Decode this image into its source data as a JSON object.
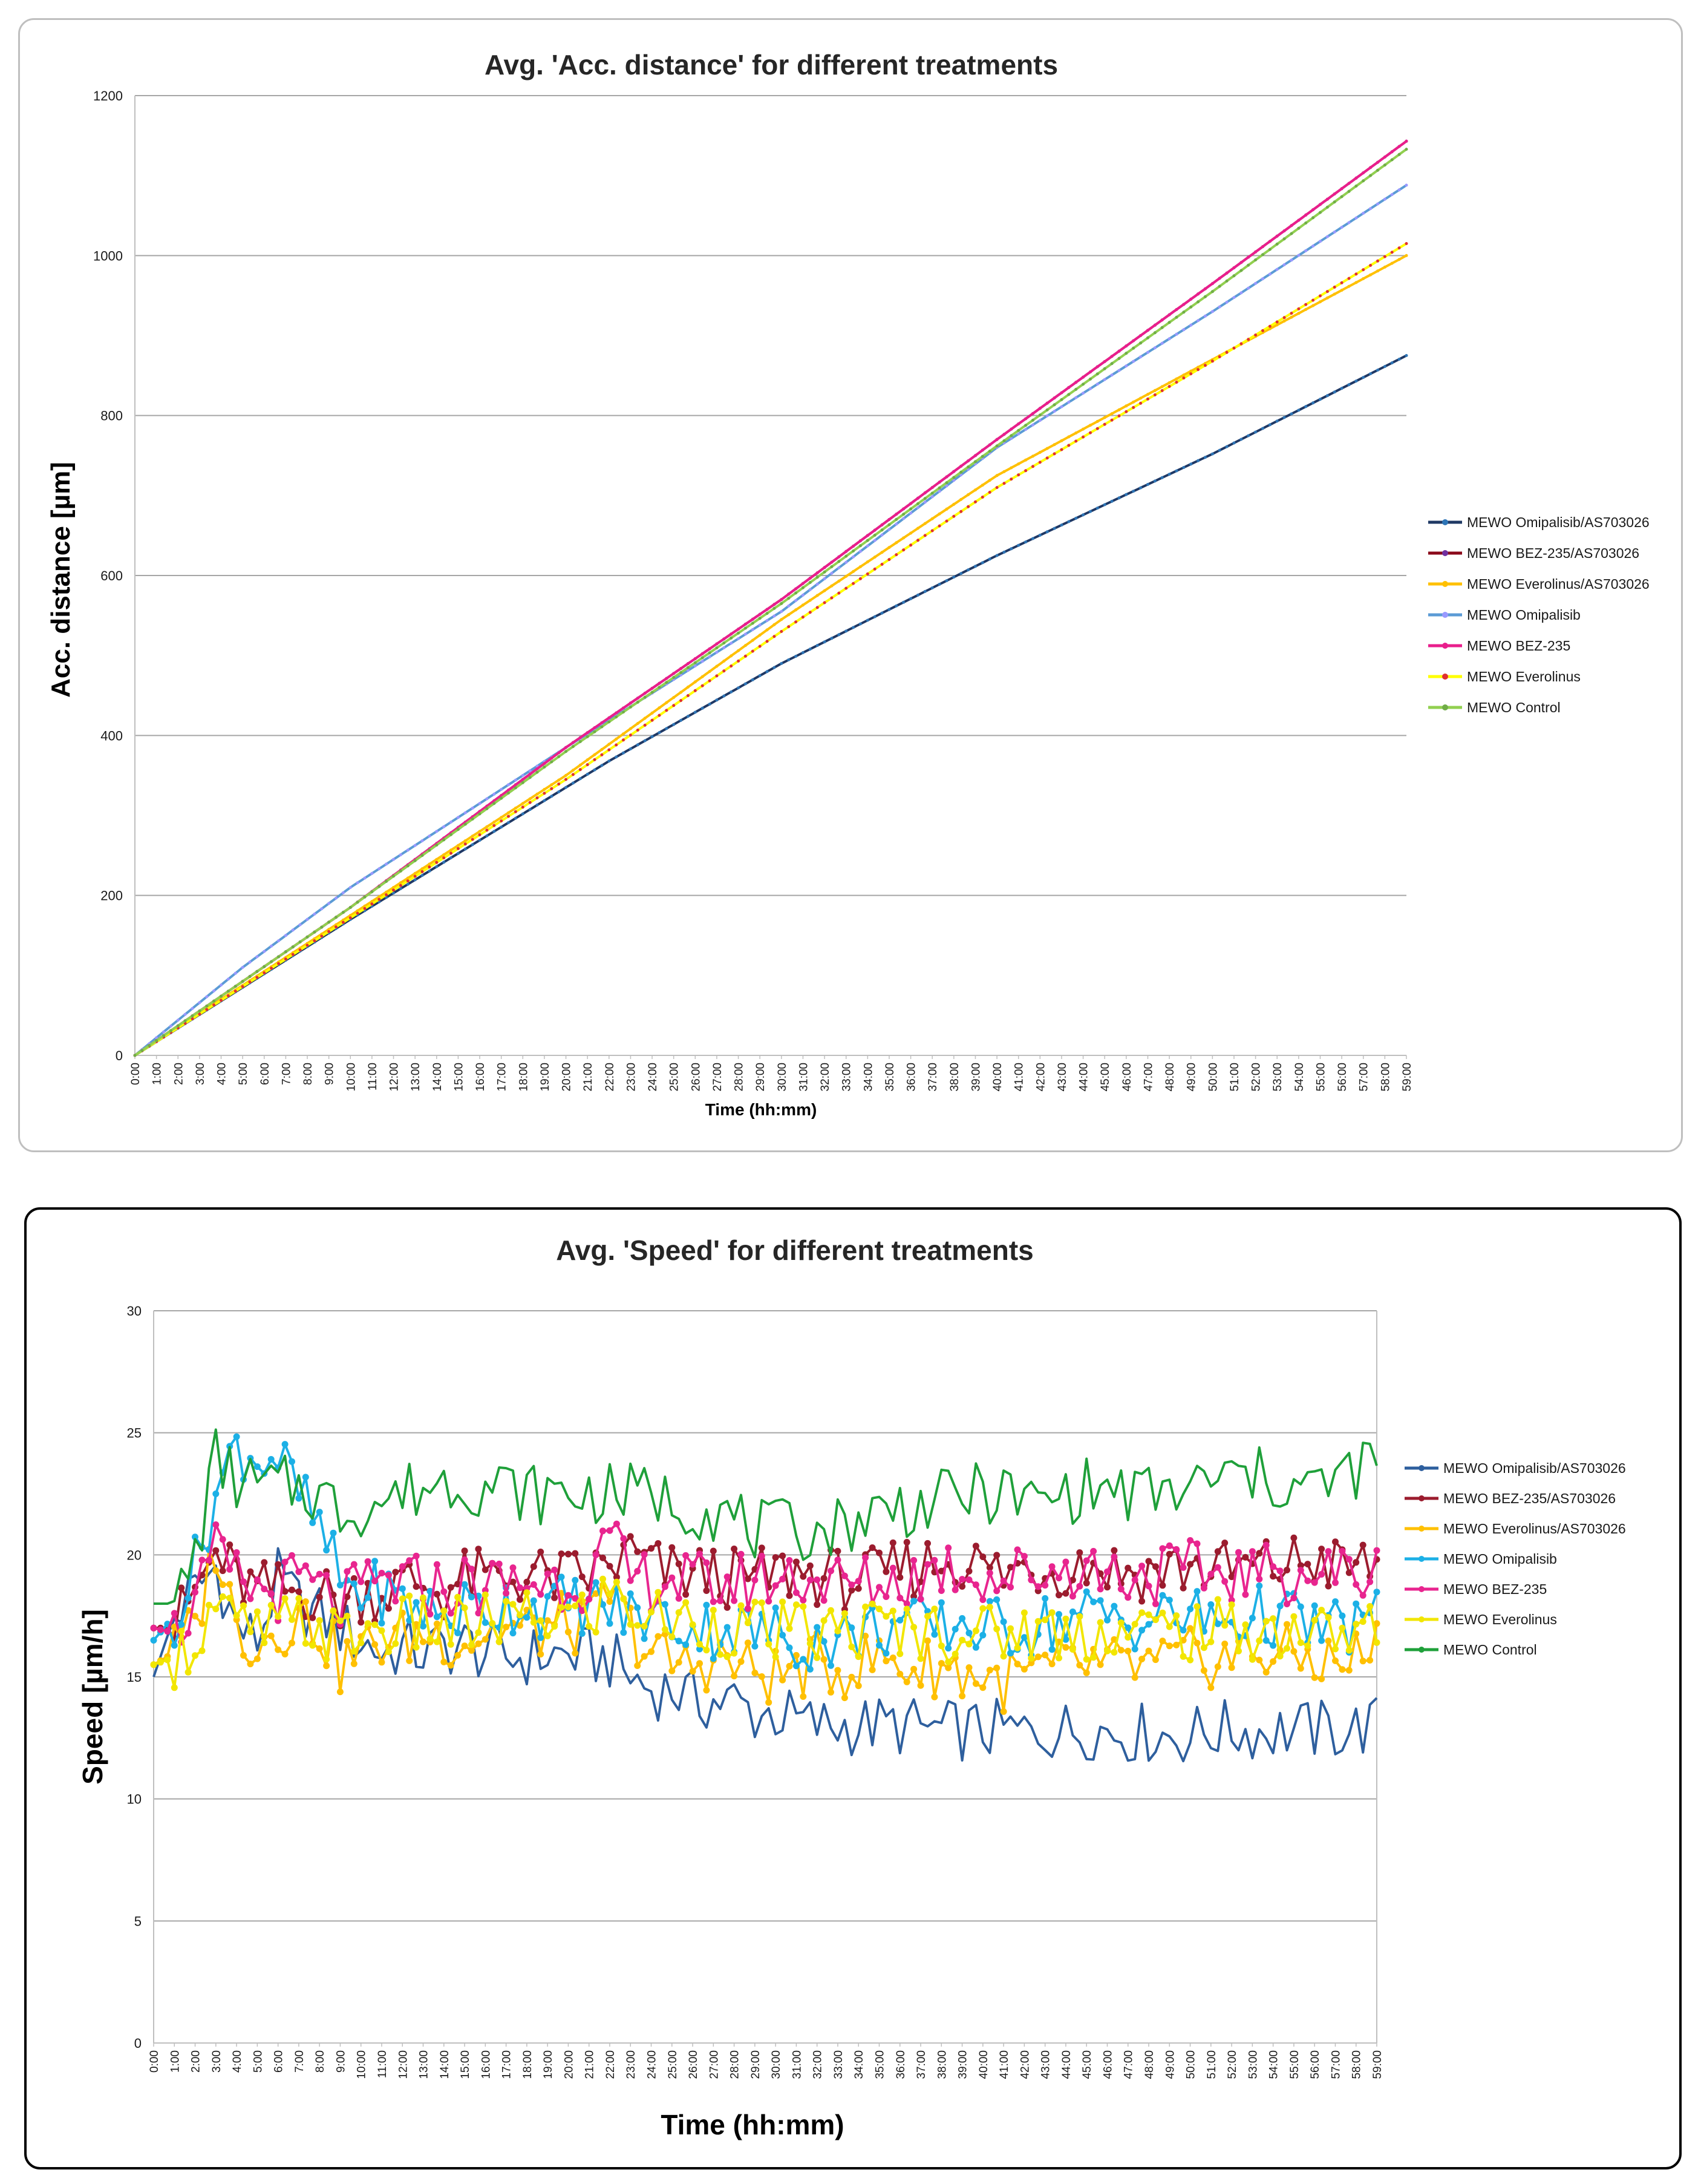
{
  "chart_data": [
    {
      "type": "line",
      "title": "Avg. 'Acc. distance' for different treatments",
      "xlabel": "Time (hh:mm)",
      "ylabel": "Acc. distance [µm]",
      "ylim": [
        0,
        1200
      ],
      "yticks": [
        "0",
        "200",
        "400",
        "600",
        "800",
        "1000",
        "1200"
      ],
      "grid": "horizontal",
      "legend": "right",
      "x": [
        "0:00",
        "1:00",
        "2:00",
        "3:00",
        "4:00",
        "5:00",
        "6:00",
        "7:00",
        "8:00",
        "9:00",
        "10:00",
        "11:00",
        "12:00",
        "13:00",
        "14:00",
        "15:00",
        "16:00",
        "17:00",
        "18:00",
        "19:00",
        "20:00",
        "21:00",
        "22:00",
        "23:00",
        "24:00",
        "25:00",
        "26:00",
        "27:00",
        "28:00",
        "29:00",
        "30:00",
        "31:00",
        "32:00",
        "33:00",
        "34:00",
        "35:00",
        "36:00",
        "37:00",
        "38:00",
        "39:00",
        "40:00",
        "41:00",
        "42:00",
        "43:00",
        "44:00",
        "45:00",
        "46:00",
        "47:00",
        "48:00",
        "49:00",
        "50:00",
        "51:00",
        "52:00",
        "53:00",
        "54:00",
        "55:00",
        "56:00",
        "57:00",
        "58:00",
        "59:00"
      ],
      "series": [
        {
          "name": "MEWO Omipalisib/AS703026",
          "color": "#1f3864",
          "marker": "#2e75b6",
          "anchors": [
            [
              0,
              0
            ],
            [
              10,
              170
            ],
            [
              20,
              335
            ],
            [
              22,
              368
            ],
            [
              30,
              490
            ],
            [
              40,
              625
            ],
            [
              50,
              752
            ],
            [
              59,
              875
            ]
          ]
        },
        {
          "name": "MEWO BEZ-235/AS703026",
          "color": "#8b0a1a",
          "marker": "#7030a0",
          "anchors": [
            [
              0,
              0
            ],
            [
              10,
              185
            ],
            [
              20,
              385
            ],
            [
              30,
              570
            ],
            [
              40,
              770
            ],
            [
              50,
              965
            ],
            [
              59,
              1143
            ]
          ]
        },
        {
          "name": "MEWO Everolinus/AS703026",
          "color": "#ffc000",
          "marker": "#ffc000",
          "anchors": [
            [
              0,
              0
            ],
            [
              10,
              175
            ],
            [
              20,
              350
            ],
            [
              30,
              545
            ],
            [
              40,
              725
            ],
            [
              50,
              870
            ],
            [
              59,
              1000
            ]
          ]
        },
        {
          "name": "MEWO Omipalisib",
          "color": "#5b9bd5",
          "marker": "#9999ff",
          "anchors": [
            [
              0,
              0
            ],
            [
              5,
              110
            ],
            [
              10,
              210
            ],
            [
              20,
              385
            ],
            [
              30,
              555
            ],
            [
              40,
              760
            ],
            [
              50,
              930
            ],
            [
              59,
              1088
            ]
          ]
        },
        {
          "name": "MEWO BEZ-235",
          "color": "#e91e8c",
          "marker": "#e91e8c",
          "anchors": [
            [
              0,
              0
            ],
            [
              10,
              185
            ],
            [
              20,
              385
            ],
            [
              30,
              570
            ],
            [
              40,
              770
            ],
            [
              50,
              965
            ],
            [
              59,
              1143
            ]
          ]
        },
        {
          "name": "MEWO Everolinus",
          "color": "#ffff00",
          "marker": "#e03030",
          "anchors": [
            [
              0,
              0
            ],
            [
              10,
              172
            ],
            [
              20,
              345
            ],
            [
              30,
              530
            ],
            [
              40,
              710
            ],
            [
              50,
              868
            ],
            [
              59,
              1015
            ]
          ]
        },
        {
          "name": "MEWO Control",
          "color": "#92d050",
          "marker": "#70ad47",
          "anchors": [
            [
              0,
              0
            ],
            [
              10,
              185
            ],
            [
              20,
              380
            ],
            [
              30,
              565
            ],
            [
              40,
              762
            ],
            [
              50,
              955
            ],
            [
              59,
              1133
            ]
          ]
        }
      ]
    },
    {
      "type": "line",
      "title": "Avg. 'Speed' for different treatments",
      "xlabel": "Time (hh:mm)",
      "ylabel": "Speed [µm/h]",
      "ylim": [
        0,
        30
      ],
      "yticks": [
        "0",
        "5",
        "10",
        "15",
        "20",
        "25",
        "30"
      ],
      "grid": "horizontal",
      "legend": "right",
      "x": [
        "0:00",
        "1:00",
        "2:00",
        "3:00",
        "4:00",
        "5:00",
        "6:00",
        "7:00",
        "8:00",
        "9:00",
        "10:00",
        "11:00",
        "12:00",
        "13:00",
        "14:00",
        "15:00",
        "16:00",
        "17:00",
        "18:00",
        "19:00",
        "20:00",
        "21:00",
        "22:00",
        "23:00",
        "24:00",
        "25:00",
        "26:00",
        "27:00",
        "28:00",
        "29:00",
        "30:00",
        "31:00",
        "32:00",
        "33:00",
        "34:00",
        "35:00",
        "36:00",
        "37:00",
        "38:00",
        "39:00",
        "40:00",
        "41:00",
        "42:00",
        "43:00",
        "44:00",
        "45:00",
        "46:00",
        "47:00",
        "48:00",
        "49:00",
        "50:00",
        "51:00",
        "52:00",
        "53:00",
        "54:00",
        "55:00",
        "56:00",
        "57:00",
        "58:00",
        "59:00"
      ],
      "series": [
        {
          "name": "MEWO Omipalisib/AS703026",
          "color": "#2e5f9e",
          "dots": false,
          "values": [
            15.0,
            17.5,
            18.5,
            19.5,
            17.0,
            16.5,
            19.0,
            18.0,
            17.5,
            17.0,
            16.5,
            16.0,
            16.2,
            16.0,
            16.2,
            16.3,
            16.0,
            15.8,
            15.8,
            15.9,
            15.9,
            15.8,
            15.7,
            15.0,
            14.5,
            14.5,
            14.0,
            14.0,
            14.0,
            13.5,
            13.5,
            13.2,
            13.0,
            13.0,
            13.0,
            13.0,
            13.0,
            12.9,
            12.8,
            12.8,
            12.8,
            12.8,
            12.7,
            12.8,
            12.8,
            12.9,
            12.8,
            12.7,
            12.7,
            12.6,
            12.6,
            12.8,
            12.8,
            12.8,
            12.8,
            12.8,
            12.8,
            12.8,
            12.9,
            13.0
          ]
        },
        {
          "name": "MEWO BEZ-235/AS703026",
          "color": "#9b1c2e",
          "dots": true,
          "values": [
            17.0,
            17.0,
            18.5,
            20.0,
            19.0,
            18.5,
            18.5,
            18.5,
            18.5,
            18.0,
            18.5,
            18.5,
            18.8,
            18.8,
            18.5,
            19.0,
            19.0,
            19.0,
            19.2,
            19.0,
            19.0,
            19.2,
            19.5,
            20.0,
            19.5,
            19.2,
            19.2,
            19.2,
            19.0,
            19.0,
            19.2,
            19.3,
            19.2,
            19.0,
            19.0,
            19.0,
            19.5,
            19.5,
            19.8,
            19.8,
            19.5,
            19.2,
            19.5,
            19.5,
            19.5,
            19.7,
            19.5,
            19.3,
            19.3,
            19.5,
            19.5,
            19.5,
            19.3,
            19.5,
            19.5,
            19.7,
            19.8,
            19.5,
            19.5,
            19.6
          ]
        },
        {
          "name": "MEWO Everolinus/AS703026",
          "color": "#ffc000",
          "dots": true,
          "values": [
            15.5,
            16.0,
            17.0,
            20.5,
            17.0,
            16.5,
            17.0,
            17.5,
            17.0,
            15.5,
            16.0,
            16.5,
            16.5,
            16.8,
            16.7,
            16.5,
            16.8,
            17.0,
            16.8,
            17.0,
            17.2,
            17.0,
            18.5,
            17.0,
            16.0,
            15.5,
            15.5,
            15.8,
            15.5,
            15.2,
            15.0,
            15.3,
            15.5,
            15.3,
            15.5,
            15.8,
            15.5,
            15.3,
            15.5,
            15.2,
            15.0,
            14.8,
            15.0,
            15.2,
            15.3,
            15.5,
            15.3,
            15.5,
            15.3,
            15.5,
            15.7,
            15.8,
            15.8,
            16.0,
            16.0,
            15.8,
            15.8,
            15.5,
            15.8,
            16.2
          ]
        },
        {
          "name": "MEWO Omipalisib",
          "color": "#1cb0e6",
          "dots": true,
          "values": [
            16.5,
            17.5,
            19.5,
            22.5,
            24.5,
            24.0,
            24.0,
            22.5,
            21.0,
            19.0,
            18.5,
            18.5,
            18.0,
            17.8,
            17.5,
            17.8,
            17.8,
            18.0,
            18.0,
            17.8,
            18.0,
            18.0,
            17.8,
            17.5,
            17.5,
            17.3,
            17.0,
            17.0,
            17.0,
            16.8,
            16.8,
            16.5,
            16.5,
            16.5,
            16.8,
            17.0,
            17.2,
            17.0,
            17.0,
            17.2,
            17.0,
            17.0,
            17.0,
            17.2,
            17.3,
            17.5,
            17.5,
            17.3,
            17.3,
            17.5,
            17.5,
            17.3,
            17.3,
            17.5,
            17.5,
            17.3,
            17.0,
            17.0,
            17.2,
            17.3
          ]
        },
        {
          "name": "MEWO BEZ-235",
          "color": "#e8258f",
          "dots": true,
          "values": [
            17.0,
            16.8,
            18.0,
            20.0,
            19.0,
            18.5,
            18.5,
            19.0,
            18.5,
            18.0,
            18.5,
            18.8,
            18.8,
            18.8,
            18.6,
            18.8,
            18.7,
            18.8,
            18.9,
            18.9,
            19.0,
            19.0,
            20.5,
            19.0,
            19.0,
            19.0,
            18.8,
            18.8,
            18.8,
            19.0,
            19.0,
            19.2,
            19.0,
            18.8,
            18.8,
            18.8,
            19.0,
            19.2,
            19.5,
            19.5,
            19.2,
            19.0,
            19.3,
            19.3,
            19.5,
            19.5,
            19.3,
            19.2,
            19.2,
            19.3,
            19.3,
            19.2,
            19.3,
            19.2,
            19.2,
            19.3,
            19.2,
            19.3,
            19.2,
            19.3
          ]
        },
        {
          "name": "MEWO Everolinus",
          "color": "#f2e600",
          "dots": true,
          "values": [
            15.5,
            15.8,
            16.5,
            18.0,
            17.0,
            16.8,
            17.0,
            17.2,
            17.0,
            16.5,
            16.8,
            17.0,
            17.0,
            17.2,
            17.0,
            17.0,
            17.2,
            17.3,
            17.3,
            17.4,
            17.5,
            17.5,
            18.5,
            17.8,
            17.5,
            17.3,
            17.2,
            17.2,
            17.0,
            17.0,
            16.8,
            16.8,
            16.8,
            16.8,
            17.0,
            17.0,
            17.0,
            16.9,
            16.9,
            16.9,
            16.8,
            16.8,
            16.9,
            16.9,
            16.8,
            16.9,
            16.9,
            16.9,
            16.9,
            16.9,
            16.9,
            16.9,
            16.9,
            16.9,
            16.9,
            16.9,
            16.8,
            16.8,
            16.9,
            16.9
          ]
        },
        {
          "name": "MEWO Control",
          "color": "#1fa03a",
          "dots": false,
          "values": [
            18.0,
            18.0,
            20.0,
            24.0,
            23.0,
            22.8,
            22.8,
            22.8,
            22.5,
            21.8,
            22.0,
            22.2,
            22.5,
            22.8,
            23.0,
            23.0,
            22.8,
            22.8,
            22.5,
            22.5,
            22.5,
            22.5,
            22.5,
            22.5,
            22.5,
            22.2,
            22.0,
            21.8,
            21.5,
            21.0,
            21.0,
            21.0,
            21.0,
            21.2,
            21.5,
            21.8,
            22.0,
            22.0,
            22.2,
            22.5,
            22.5,
            22.5,
            22.2,
            22.2,
            22.5,
            22.7,
            22.7,
            22.5,
            22.5,
            22.5,
            22.7,
            23.0,
            23.2,
            23.2,
            23.0,
            22.8,
            22.8,
            23.0,
            23.5,
            23.8
          ]
        }
      ]
    }
  ]
}
